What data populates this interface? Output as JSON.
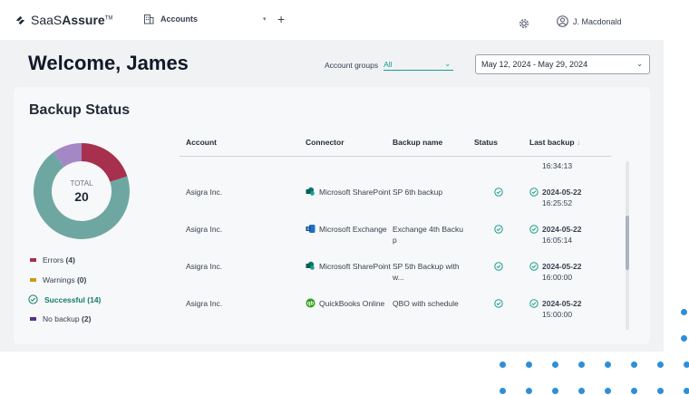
{
  "brand": {
    "name_light": "SaaS",
    "name_bold": "Assure",
    "tm": "TM"
  },
  "tab": {
    "label": "Accounts"
  },
  "user": {
    "name": "J. Macdonald"
  },
  "page": {
    "welcome": "Welcome, James"
  },
  "filters": {
    "account_groups_label": "Account groups",
    "account_groups_value": "All",
    "date_range": "May 12, 2024 - May 29, 2024"
  },
  "backup_status": {
    "title": "Backup Status",
    "total_label": "TOTAL",
    "total_value": "20",
    "legend": [
      {
        "label": "Errors",
        "count": "(4)",
        "color": "#a8304f"
      },
      {
        "label": "Warnings",
        "count": "(0)",
        "color": "#c99a1a"
      },
      {
        "label": "Successful",
        "count": "(14)",
        "color": "#6ea7a2"
      },
      {
        "label": "No backup",
        "count": "(2)",
        "color": "#a488c6"
      }
    ]
  },
  "table": {
    "headers": [
      "Account",
      "Connector",
      "Backup name",
      "Status",
      "Last backup"
    ],
    "partial_row_time": "16:34:13",
    "rows": [
      {
        "account": "Asigra Inc.",
        "connector": "Microsoft SharePoint",
        "connector_icon": "sharepoint-icon",
        "backup_name_1": "SP 6th backup",
        "backup_name_2": "",
        "date": "2024-05-22",
        "time": "16:25:52"
      },
      {
        "account": "Asigra Inc.",
        "connector": "Microsoft Exchange",
        "connector_icon": "exchange-icon",
        "backup_name_1": "Exchange 4th Backu",
        "backup_name_2": "p",
        "date": "2024-05-22",
        "time": "16:05:14"
      },
      {
        "account": "Asigra Inc.",
        "connector": "Microsoft SharePoint",
        "connector_icon": "sharepoint-icon",
        "backup_name_1": "SP 5th Backup with",
        "backup_name_2": "w...",
        "date": "2024-05-22",
        "time": "16:00:00"
      },
      {
        "account": "Asigra Inc.",
        "connector": "QuickBooks Online",
        "connector_icon": "quickbooks-icon",
        "backup_name_1": "QBO with schedule",
        "backup_name_2": "",
        "date": "2024-05-22",
        "time": "15:00:00"
      }
    ]
  },
  "colors": {
    "accent": "#1a9c8e",
    "success": "#1a9c8e",
    "dots": "#2e8fd8"
  }
}
